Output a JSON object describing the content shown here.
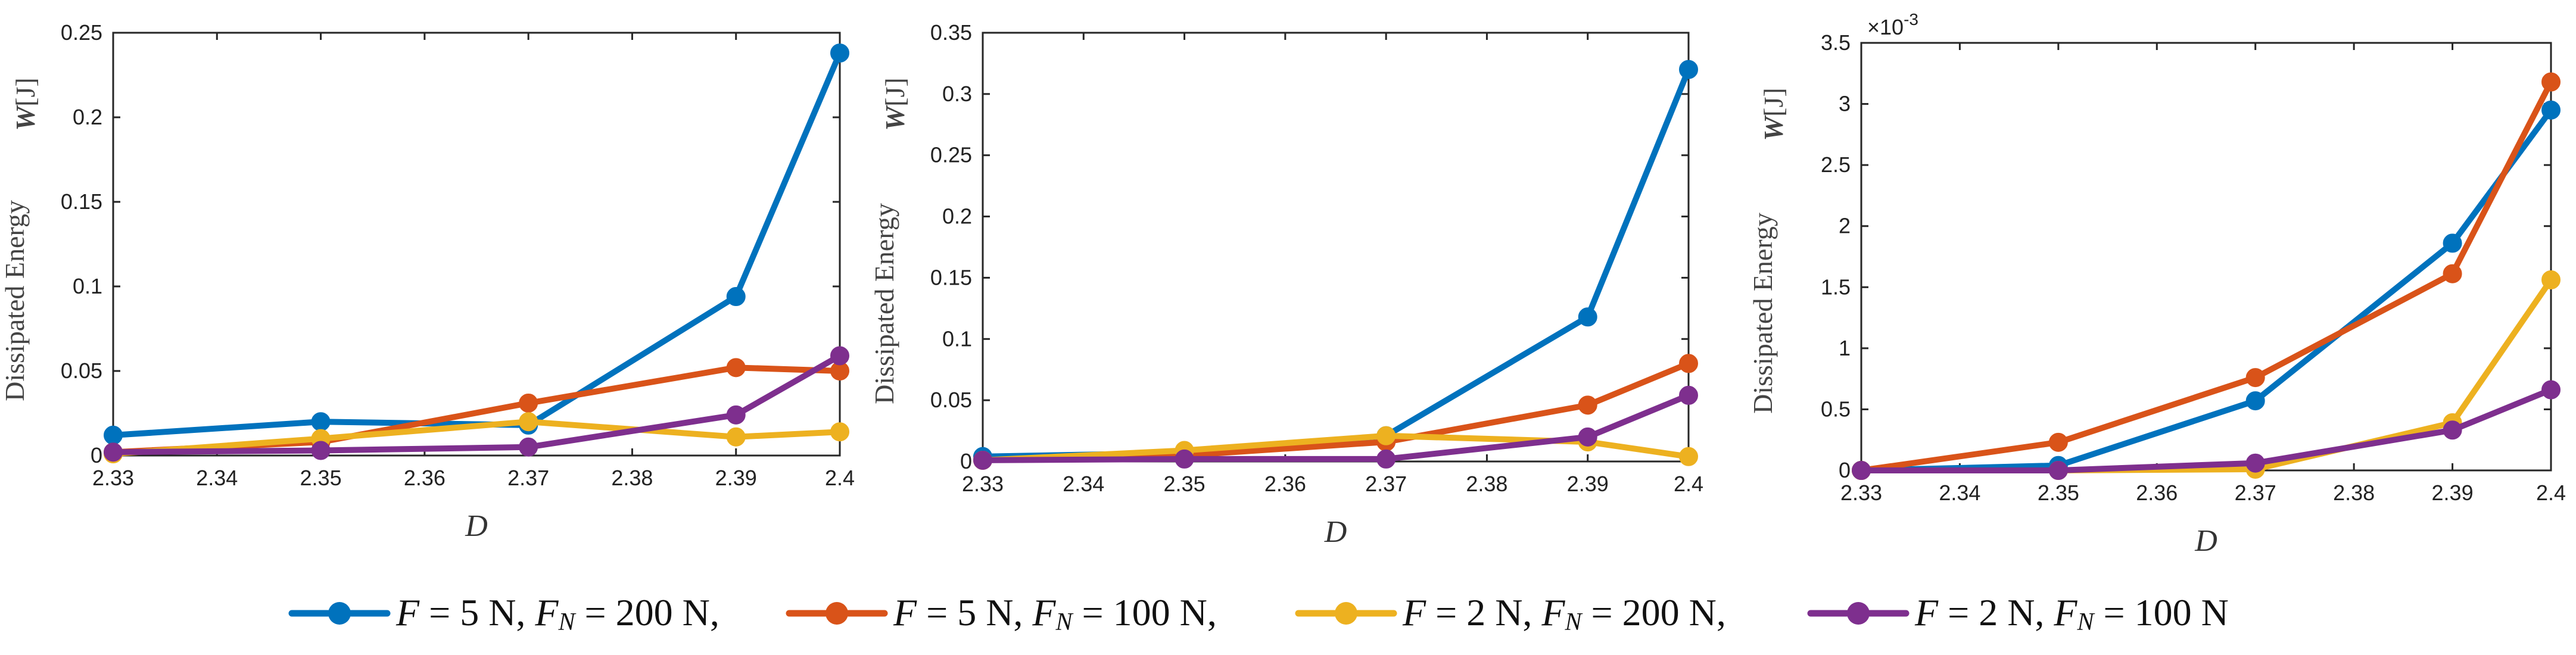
{
  "legend": [
    {
      "color": "#0072BD",
      "F": "F",
      "eq1": " = 5 N, ",
      "FN": "F",
      "FNsub": "N",
      "eq2": " = 200 N,"
    },
    {
      "color": "#D95319",
      "F": "F",
      "eq1": " = 5 N, ",
      "FN": "F",
      "FNsub": "N",
      "eq2": " = 100 N,"
    },
    {
      "color": "#EDB120",
      "F": "F",
      "eq1": " = 2 N, ",
      "FN": "F",
      "FNsub": "N",
      "eq2": " = 200 N,"
    },
    {
      "color": "#7E2F8E",
      "F": "F",
      "eq1": " = 2 N, ",
      "FN": "F",
      "FNsub": "N",
      "eq2": " = 100 N"
    }
  ],
  "chart_data": [
    {
      "type": "line",
      "title": "",
      "xlabel": "D",
      "ylabel": "Dissipated Energy",
      "ylabel_var": "W",
      "ylabel_unit": "[J]",
      "x": [
        2.33,
        2.35,
        2.37,
        2.39,
        2.4
      ],
      "xlim": [
        2.33,
        2.4
      ],
      "xticks": [
        2.33,
        2.34,
        2.35,
        2.36,
        2.37,
        2.38,
        2.39,
        2.4
      ],
      "xtick_labels": [
        "2.33",
        "2.34",
        "2.35",
        "2.36",
        "2.37",
        "2.38",
        "2.39",
        "2.4"
      ],
      "ylim": [
        0,
        0.25
      ],
      "yticks": [
        0,
        0.05,
        0.1,
        0.15,
        0.2,
        0.25
      ],
      "ytick_labels": [
        "0",
        "0.05",
        "0.1",
        "0.15",
        "0.2",
        "0.25"
      ],
      "exponent_label": "",
      "series": [
        {
          "name": "F = 5 N, FN = 200 N",
          "color": "#0072BD",
          "values": [
            0.012,
            0.02,
            0.018,
            0.094,
            0.238
          ]
        },
        {
          "name": "F = 5 N, FN = 100 N",
          "color": "#D95319",
          "values": [
            0.002,
            0.008,
            0.031,
            0.052,
            0.05
          ]
        },
        {
          "name": "F = 2 N, FN = 200 N",
          "color": "#EDB120",
          "values": [
            0.001,
            0.01,
            0.02,
            0.011,
            0.014
          ]
        },
        {
          "name": "F = 2 N, FN = 100 N",
          "color": "#7E2F8E",
          "values": [
            0.002,
            0.003,
            0.005,
            0.024,
            0.059
          ]
        }
      ]
    },
    {
      "type": "line",
      "title": "",
      "xlabel": "D",
      "ylabel": "Dissipated Energy",
      "ylabel_var": "W",
      "ylabel_unit": "[J]",
      "x": [
        2.33,
        2.35,
        2.37,
        2.39,
        2.4
      ],
      "xlim": [
        2.33,
        2.4
      ],
      "xticks": [
        2.33,
        2.34,
        2.35,
        2.36,
        2.37,
        2.38,
        2.39,
        2.4
      ],
      "xtick_labels": [
        "2.33",
        "2.34",
        "2.35",
        "2.36",
        "2.37",
        "2.38",
        "2.39",
        "2.4"
      ],
      "ylim": [
        0,
        0.35
      ],
      "yticks": [
        0,
        0.05,
        0.1,
        0.15,
        0.2,
        0.25,
        0.3,
        0.35
      ],
      "ytick_labels": [
        "0",
        "0.05",
        "0.1",
        "0.15",
        "0.2",
        "0.25",
        "0.3",
        "0.35"
      ],
      "exponent_label": "",
      "series": [
        {
          "name": "F = 5 N, FN = 200 N",
          "color": "#0072BD",
          "values": [
            0.004,
            0.007,
            0.021,
            0.118,
            0.32
          ]
        },
        {
          "name": "F = 5 N, FN = 100 N",
          "color": "#D95319",
          "values": [
            0.001,
            0.005,
            0.016,
            0.046,
            0.08
          ]
        },
        {
          "name": "F = 2 N, FN = 200 N",
          "color": "#EDB120",
          "values": [
            0.001,
            0.009,
            0.021,
            0.016,
            0.004
          ]
        },
        {
          "name": "F = 2 N, FN = 100 N",
          "color": "#7E2F8E",
          "values": [
            0.001,
            0.002,
            0.002,
            0.02,
            0.054
          ]
        }
      ]
    },
    {
      "type": "line",
      "title": "",
      "xlabel": "D",
      "ylabel": "Dissipated Energy",
      "ylabel_var": "W",
      "ylabel_unit": "[J]",
      "x": [
        2.33,
        2.35,
        2.37,
        2.39,
        2.4
      ],
      "xlim": [
        2.33,
        2.4
      ],
      "xticks": [
        2.33,
        2.34,
        2.35,
        2.36,
        2.37,
        2.38,
        2.39,
        2.4
      ],
      "xtick_labels": [
        "2.33",
        "2.34",
        "2.35",
        "2.36",
        "2.37",
        "2.38",
        "2.39",
        "2.4"
      ],
      "ylim": [
        0,
        3.5
      ],
      "yticks": [
        0,
        0.5,
        1,
        1.5,
        2,
        2.5,
        3,
        3.5
      ],
      "ytick_labels": [
        "0",
        "0.5",
        "1",
        "1.5",
        "2",
        "2.5",
        "3",
        "3.5"
      ],
      "exponent_label": "×10",
      "exponent_power": "-3",
      "series": [
        {
          "name": "F = 5 N, FN = 200 N",
          "color": "#0072BD",
          "values": [
            0.0,
            0.04,
            0.57,
            1.86,
            2.95
          ]
        },
        {
          "name": "F = 5 N, FN = 100 N",
          "color": "#D95319",
          "values": [
            0.0,
            0.23,
            0.76,
            1.61,
            3.18
          ]
        },
        {
          "name": "F = 2 N, FN = 200 N",
          "color": "#EDB120",
          "values": [
            0.0,
            0.0,
            0.01,
            0.39,
            1.56
          ]
        },
        {
          "name": "F = 2 N, FN = 100 N",
          "color": "#7E2F8E",
          "values": [
            0.0,
            0.0,
            0.06,
            0.33,
            0.66
          ]
        }
      ]
    }
  ]
}
